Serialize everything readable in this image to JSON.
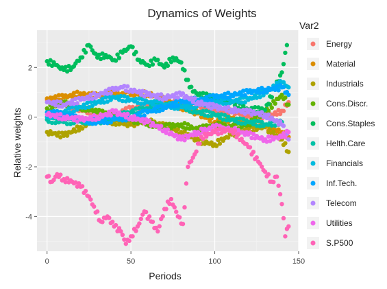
{
  "chart_data": {
    "type": "scatter",
    "title": "Dynamics of Weights",
    "xlabel": "Periods",
    "ylabel": "Relative weights",
    "xlim": [
      -6,
      150
    ],
    "ylim": [
      -5.4,
      3.5
    ],
    "xticks": [
      0,
      50,
      100,
      150
    ],
    "yticks": [
      -4,
      -2,
      0,
      2
    ],
    "xtick_labels": [
      "0",
      "50",
      "100",
      "150"
    ],
    "ytick_labels": [
      "-4",
      "-2",
      "0",
      "2"
    ],
    "grid": true,
    "panel_background": "#ebebeb",
    "legend_title": "Var2",
    "legend_position": "right",
    "series": [
      {
        "name": "Energy",
        "color": "#F8766D",
        "points": [
          [
            0,
            0.7
          ],
          [
            10,
            0.55
          ],
          [
            20,
            0.3
          ],
          [
            30,
            0.1
          ],
          [
            40,
            0.05
          ],
          [
            50,
            0.35
          ],
          [
            60,
            0.45
          ],
          [
            70,
            0.55
          ],
          [
            80,
            0.6
          ],
          [
            90,
            0.45
          ],
          [
            100,
            0.3
          ],
          [
            110,
            0.2
          ],
          [
            120,
            0.1
          ],
          [
            130,
            0.0
          ],
          [
            140,
            0.25
          ],
          [
            144,
            0.6
          ]
        ]
      },
      {
        "name": "Material",
        "color": "#DB8E00",
        "points": [
          [
            0,
            0.75
          ],
          [
            10,
            0.8
          ],
          [
            20,
            0.95
          ],
          [
            30,
            0.85
          ],
          [
            40,
            0.95
          ],
          [
            50,
            0.9
          ],
          [
            60,
            0.95
          ],
          [
            70,
            0.7
          ],
          [
            80,
            0.4
          ],
          [
            90,
            0.15
          ],
          [
            100,
            -0.2
          ],
          [
            110,
            -0.1
          ],
          [
            120,
            -0.3
          ],
          [
            130,
            -0.4
          ],
          [
            140,
            -0.6
          ],
          [
            144,
            -0.8
          ]
        ]
      },
      {
        "name": "Industrials",
        "color": "#AEA200",
        "points": [
          [
            0,
            -0.6
          ],
          [
            10,
            -0.75
          ],
          [
            20,
            -0.4
          ],
          [
            30,
            -0.1
          ],
          [
            40,
            -0.2
          ],
          [
            50,
            -0.3
          ],
          [
            60,
            -0.15
          ],
          [
            70,
            -0.35
          ],
          [
            80,
            -0.6
          ],
          [
            90,
            -0.95
          ],
          [
            100,
            -1.1
          ],
          [
            110,
            -0.7
          ],
          [
            120,
            -0.5
          ],
          [
            130,
            -0.4
          ],
          [
            140,
            -0.9
          ],
          [
            144,
            -1.4
          ]
        ]
      },
      {
        "name": "Cons.Discr.",
        "color": "#64B200",
        "points": [
          [
            0,
            0.35
          ],
          [
            10,
            0.55
          ],
          [
            20,
            0.4
          ],
          [
            30,
            0.2
          ],
          [
            40,
            0.1
          ],
          [
            50,
            -0.1
          ],
          [
            60,
            -0.25
          ],
          [
            70,
            -0.4
          ],
          [
            80,
            -0.3
          ],
          [
            90,
            -0.5
          ],
          [
            100,
            -0.3
          ],
          [
            110,
            -0.4
          ],
          [
            120,
            -0.3
          ],
          [
            130,
            0.2
          ],
          [
            140,
            0.9
          ],
          [
            144,
            0.5
          ]
        ]
      },
      {
        "name": "Cons.Staples",
        "color": "#00BD5C",
        "points": [
          [
            0,
            2.25
          ],
          [
            5,
            2.1
          ],
          [
            10,
            1.9
          ],
          [
            15,
            2.0
          ],
          [
            20,
            2.4
          ],
          [
            25,
            2.9
          ],
          [
            30,
            2.4
          ],
          [
            35,
            2.5
          ],
          [
            40,
            2.3
          ],
          [
            45,
            2.6
          ],
          [
            50,
            2.85
          ],
          [
            55,
            2.3
          ],
          [
            60,
            2.1
          ],
          [
            65,
            2.3
          ],
          [
            70,
            2.0
          ],
          [
            75,
            2.4
          ],
          [
            80,
            2.2
          ],
          [
            85,
            1.2
          ],
          [
            90,
            0.9
          ],
          [
            100,
            0.8
          ],
          [
            110,
            0.6
          ],
          [
            120,
            0.3
          ],
          [
            130,
            0.3
          ],
          [
            140,
            1.8
          ],
          [
            143,
            2.9
          ]
        ]
      },
      {
        "name": "Helth.Care",
        "color": "#00C1A7",
        "points": [
          [
            0,
            -0.1
          ],
          [
            10,
            -0.2
          ],
          [
            20,
            -0.15
          ],
          [
            30,
            -0.2
          ],
          [
            40,
            0.0
          ],
          [
            50,
            0.2
          ],
          [
            60,
            0.35
          ],
          [
            70,
            0.5
          ],
          [
            80,
            0.45
          ],
          [
            90,
            0.2
          ],
          [
            100,
            0.1
          ],
          [
            110,
            -0.1
          ],
          [
            120,
            -0.2
          ],
          [
            130,
            -0.3
          ],
          [
            140,
            -0.2
          ]
        ]
      },
      {
        "name": "Financials",
        "color": "#00BADE",
        "points": [
          [
            0,
            0.0
          ],
          [
            10,
            0.2
          ],
          [
            20,
            0.4
          ],
          [
            30,
            0.6
          ],
          [
            40,
            0.8
          ],
          [
            50,
            0.7
          ],
          [
            60,
            0.6
          ],
          [
            70,
            0.5
          ],
          [
            80,
            0.4
          ],
          [
            90,
            0.5
          ],
          [
            100,
            0.6
          ],
          [
            110,
            0.65
          ],
          [
            120,
            0.7
          ],
          [
            130,
            1.0
          ],
          [
            140,
            1.4
          ],
          [
            144,
            1.2
          ]
        ]
      },
      {
        "name": "Inf.Tech.",
        "color": "#00A6FF",
        "points": [
          [
            0,
            0.2
          ],
          [
            10,
            0.1
          ],
          [
            20,
            -0.1
          ],
          [
            30,
            -0.2
          ],
          [
            40,
            -0.1
          ],
          [
            50,
            0.0
          ],
          [
            60,
            0.2
          ],
          [
            70,
            0.4
          ],
          [
            80,
            0.6
          ],
          [
            90,
            0.7
          ],
          [
            100,
            0.8
          ],
          [
            110,
            0.9
          ],
          [
            120,
            1.0
          ],
          [
            130,
            1.1
          ],
          [
            140,
            1.2
          ],
          [
            144,
            0.9
          ]
        ]
      },
      {
        "name": "Telecom",
        "color": "#B385FF",
        "points": [
          [
            0,
            0.6
          ],
          [
            10,
            0.5
          ],
          [
            20,
            0.7
          ],
          [
            30,
            0.9
          ],
          [
            40,
            1.1
          ],
          [
            45,
            1.2
          ],
          [
            50,
            1.1
          ],
          [
            60,
            0.9
          ],
          [
            70,
            0.8
          ],
          [
            80,
            0.9
          ],
          [
            90,
            0.6
          ],
          [
            100,
            0.4
          ],
          [
            110,
            0.3
          ],
          [
            120,
            0.2
          ],
          [
            130,
            0.1
          ],
          [
            140,
            -0.3
          ],
          [
            144,
            -0.9
          ]
        ]
      },
      {
        "name": "Utilities",
        "color": "#EF67EB",
        "points": [
          [
            0,
            0.1
          ],
          [
            10,
            0.0
          ],
          [
            20,
            -0.1
          ],
          [
            30,
            0.0
          ],
          [
            40,
            0.2
          ],
          [
            50,
            0.0
          ],
          [
            60,
            -0.2
          ],
          [
            70,
            -0.5
          ],
          [
            80,
            -0.9
          ],
          [
            90,
            -0.6
          ],
          [
            100,
            -0.4
          ],
          [
            110,
            -0.5
          ],
          [
            120,
            -0.7
          ],
          [
            130,
            -0.9
          ],
          [
            140,
            -0.8
          ],
          [
            144,
            -0.6
          ]
        ]
      },
      {
        "name": "S.P500",
        "color": "#FF63B6",
        "points": [
          [
            0,
            -2.4
          ],
          [
            3,
            -2.6
          ],
          [
            6,
            -2.3
          ],
          [
            10,
            -2.5
          ],
          [
            15,
            -2.6
          ],
          [
            20,
            -2.8
          ],
          [
            25,
            -3.2
          ],
          [
            28,
            -3.6
          ],
          [
            32,
            -4.2
          ],
          [
            36,
            -4.0
          ],
          [
            40,
            -4.4
          ],
          [
            44,
            -4.6
          ],
          [
            47,
            -5.1
          ],
          [
            50,
            -4.8
          ],
          [
            54,
            -4.4
          ],
          [
            58,
            -3.8
          ],
          [
            62,
            -4.2
          ],
          [
            66,
            -4.6
          ],
          [
            70,
            -3.7
          ],
          [
            74,
            -3.3
          ],
          [
            78,
            -4.0
          ],
          [
            81,
            -4.3
          ],
          [
            84,
            -2.0
          ],
          [
            88,
            -1.5
          ],
          [
            92,
            -0.8
          ],
          [
            100,
            -0.6
          ],
          [
            110,
            -0.5
          ],
          [
            120,
            -1.2
          ],
          [
            126,
            -1.8
          ],
          [
            130,
            -2.2
          ],
          [
            134,
            -2.6
          ],
          [
            137,
            -2.4
          ],
          [
            140,
            -3.5
          ],
          [
            142,
            -4.8
          ],
          [
            144,
            -4.4
          ]
        ]
      }
    ]
  }
}
